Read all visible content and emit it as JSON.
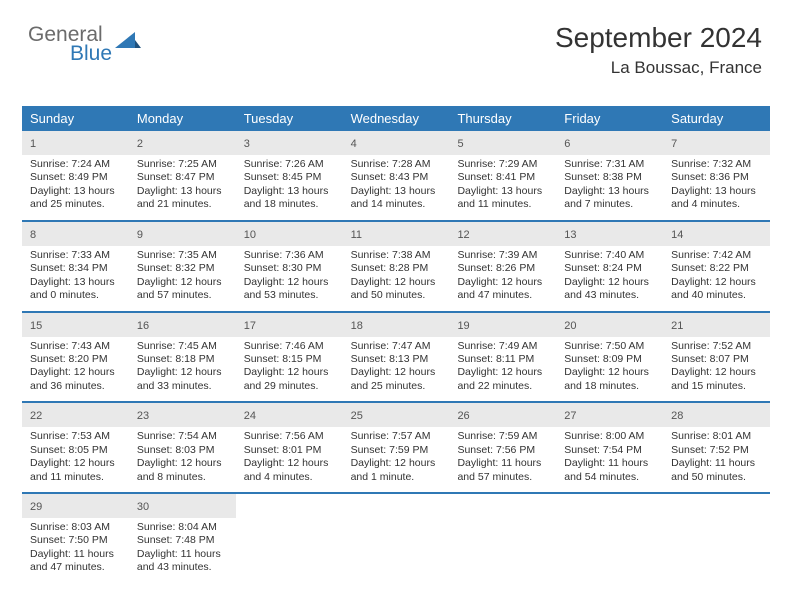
{
  "colors": {
    "brand_blue": "#2f78b5",
    "header_bg": "#2f78b5",
    "header_text": "#ffffff",
    "daynum_bg": "#e9e9e9",
    "daynum_text": "#555555",
    "body_text": "#333333",
    "logo_gray": "#6b6b6b",
    "page_bg": "#ffffff"
  },
  "logo": {
    "top": "General",
    "bottom": "Blue"
  },
  "header": {
    "month_year": "September 2024",
    "location": "La Boussac, France"
  },
  "weekdays": [
    "Sunday",
    "Monday",
    "Tuesday",
    "Wednesday",
    "Thursday",
    "Friday",
    "Saturday"
  ],
  "weeks": [
    [
      {
        "n": "1",
        "sunrise": "Sunrise: 7:24 AM",
        "sunset": "Sunset: 8:49 PM",
        "day1": "Daylight: 13 hours",
        "day2": "and 25 minutes."
      },
      {
        "n": "2",
        "sunrise": "Sunrise: 7:25 AM",
        "sunset": "Sunset: 8:47 PM",
        "day1": "Daylight: 13 hours",
        "day2": "and 21 minutes."
      },
      {
        "n": "3",
        "sunrise": "Sunrise: 7:26 AM",
        "sunset": "Sunset: 8:45 PM",
        "day1": "Daylight: 13 hours",
        "day2": "and 18 minutes."
      },
      {
        "n": "4",
        "sunrise": "Sunrise: 7:28 AM",
        "sunset": "Sunset: 8:43 PM",
        "day1": "Daylight: 13 hours",
        "day2": "and 14 minutes."
      },
      {
        "n": "5",
        "sunrise": "Sunrise: 7:29 AM",
        "sunset": "Sunset: 8:41 PM",
        "day1": "Daylight: 13 hours",
        "day2": "and 11 minutes."
      },
      {
        "n": "6",
        "sunrise": "Sunrise: 7:31 AM",
        "sunset": "Sunset: 8:38 PM",
        "day1": "Daylight: 13 hours",
        "day2": "and 7 minutes."
      },
      {
        "n": "7",
        "sunrise": "Sunrise: 7:32 AM",
        "sunset": "Sunset: 8:36 PM",
        "day1": "Daylight: 13 hours",
        "day2": "and 4 minutes."
      }
    ],
    [
      {
        "n": "8",
        "sunrise": "Sunrise: 7:33 AM",
        "sunset": "Sunset: 8:34 PM",
        "day1": "Daylight: 13 hours",
        "day2": "and 0 minutes."
      },
      {
        "n": "9",
        "sunrise": "Sunrise: 7:35 AM",
        "sunset": "Sunset: 8:32 PM",
        "day1": "Daylight: 12 hours",
        "day2": "and 57 minutes."
      },
      {
        "n": "10",
        "sunrise": "Sunrise: 7:36 AM",
        "sunset": "Sunset: 8:30 PM",
        "day1": "Daylight: 12 hours",
        "day2": "and 53 minutes."
      },
      {
        "n": "11",
        "sunrise": "Sunrise: 7:38 AM",
        "sunset": "Sunset: 8:28 PM",
        "day1": "Daylight: 12 hours",
        "day2": "and 50 minutes."
      },
      {
        "n": "12",
        "sunrise": "Sunrise: 7:39 AM",
        "sunset": "Sunset: 8:26 PM",
        "day1": "Daylight: 12 hours",
        "day2": "and 47 minutes."
      },
      {
        "n": "13",
        "sunrise": "Sunrise: 7:40 AM",
        "sunset": "Sunset: 8:24 PM",
        "day1": "Daylight: 12 hours",
        "day2": "and 43 minutes."
      },
      {
        "n": "14",
        "sunrise": "Sunrise: 7:42 AM",
        "sunset": "Sunset: 8:22 PM",
        "day1": "Daylight: 12 hours",
        "day2": "and 40 minutes."
      }
    ],
    [
      {
        "n": "15",
        "sunrise": "Sunrise: 7:43 AM",
        "sunset": "Sunset: 8:20 PM",
        "day1": "Daylight: 12 hours",
        "day2": "and 36 minutes."
      },
      {
        "n": "16",
        "sunrise": "Sunrise: 7:45 AM",
        "sunset": "Sunset: 8:18 PM",
        "day1": "Daylight: 12 hours",
        "day2": "and 33 minutes."
      },
      {
        "n": "17",
        "sunrise": "Sunrise: 7:46 AM",
        "sunset": "Sunset: 8:15 PM",
        "day1": "Daylight: 12 hours",
        "day2": "and 29 minutes."
      },
      {
        "n": "18",
        "sunrise": "Sunrise: 7:47 AM",
        "sunset": "Sunset: 8:13 PM",
        "day1": "Daylight: 12 hours",
        "day2": "and 25 minutes."
      },
      {
        "n": "19",
        "sunrise": "Sunrise: 7:49 AM",
        "sunset": "Sunset: 8:11 PM",
        "day1": "Daylight: 12 hours",
        "day2": "and 22 minutes."
      },
      {
        "n": "20",
        "sunrise": "Sunrise: 7:50 AM",
        "sunset": "Sunset: 8:09 PM",
        "day1": "Daylight: 12 hours",
        "day2": "and 18 minutes."
      },
      {
        "n": "21",
        "sunrise": "Sunrise: 7:52 AM",
        "sunset": "Sunset: 8:07 PM",
        "day1": "Daylight: 12 hours",
        "day2": "and 15 minutes."
      }
    ],
    [
      {
        "n": "22",
        "sunrise": "Sunrise: 7:53 AM",
        "sunset": "Sunset: 8:05 PM",
        "day1": "Daylight: 12 hours",
        "day2": "and 11 minutes."
      },
      {
        "n": "23",
        "sunrise": "Sunrise: 7:54 AM",
        "sunset": "Sunset: 8:03 PM",
        "day1": "Daylight: 12 hours",
        "day2": "and 8 minutes."
      },
      {
        "n": "24",
        "sunrise": "Sunrise: 7:56 AM",
        "sunset": "Sunset: 8:01 PM",
        "day1": "Daylight: 12 hours",
        "day2": "and 4 minutes."
      },
      {
        "n": "25",
        "sunrise": "Sunrise: 7:57 AM",
        "sunset": "Sunset: 7:59 PM",
        "day1": "Daylight: 12 hours",
        "day2": "and 1 minute."
      },
      {
        "n": "26",
        "sunrise": "Sunrise: 7:59 AM",
        "sunset": "Sunset: 7:56 PM",
        "day1": "Daylight: 11 hours",
        "day2": "and 57 minutes."
      },
      {
        "n": "27",
        "sunrise": "Sunrise: 8:00 AM",
        "sunset": "Sunset: 7:54 PM",
        "day1": "Daylight: 11 hours",
        "day2": "and 54 minutes."
      },
      {
        "n": "28",
        "sunrise": "Sunrise: 8:01 AM",
        "sunset": "Sunset: 7:52 PM",
        "day1": "Daylight: 11 hours",
        "day2": "and 50 minutes."
      }
    ],
    [
      {
        "n": "29",
        "sunrise": "Sunrise: 8:03 AM",
        "sunset": "Sunset: 7:50 PM",
        "day1": "Daylight: 11 hours",
        "day2": "and 47 minutes."
      },
      {
        "n": "30",
        "sunrise": "Sunrise: 8:04 AM",
        "sunset": "Sunset: 7:48 PM",
        "day1": "Daylight: 11 hours",
        "day2": "and 43 minutes."
      },
      {
        "empty": true
      },
      {
        "empty": true
      },
      {
        "empty": true
      },
      {
        "empty": true
      },
      {
        "empty": true
      }
    ]
  ]
}
